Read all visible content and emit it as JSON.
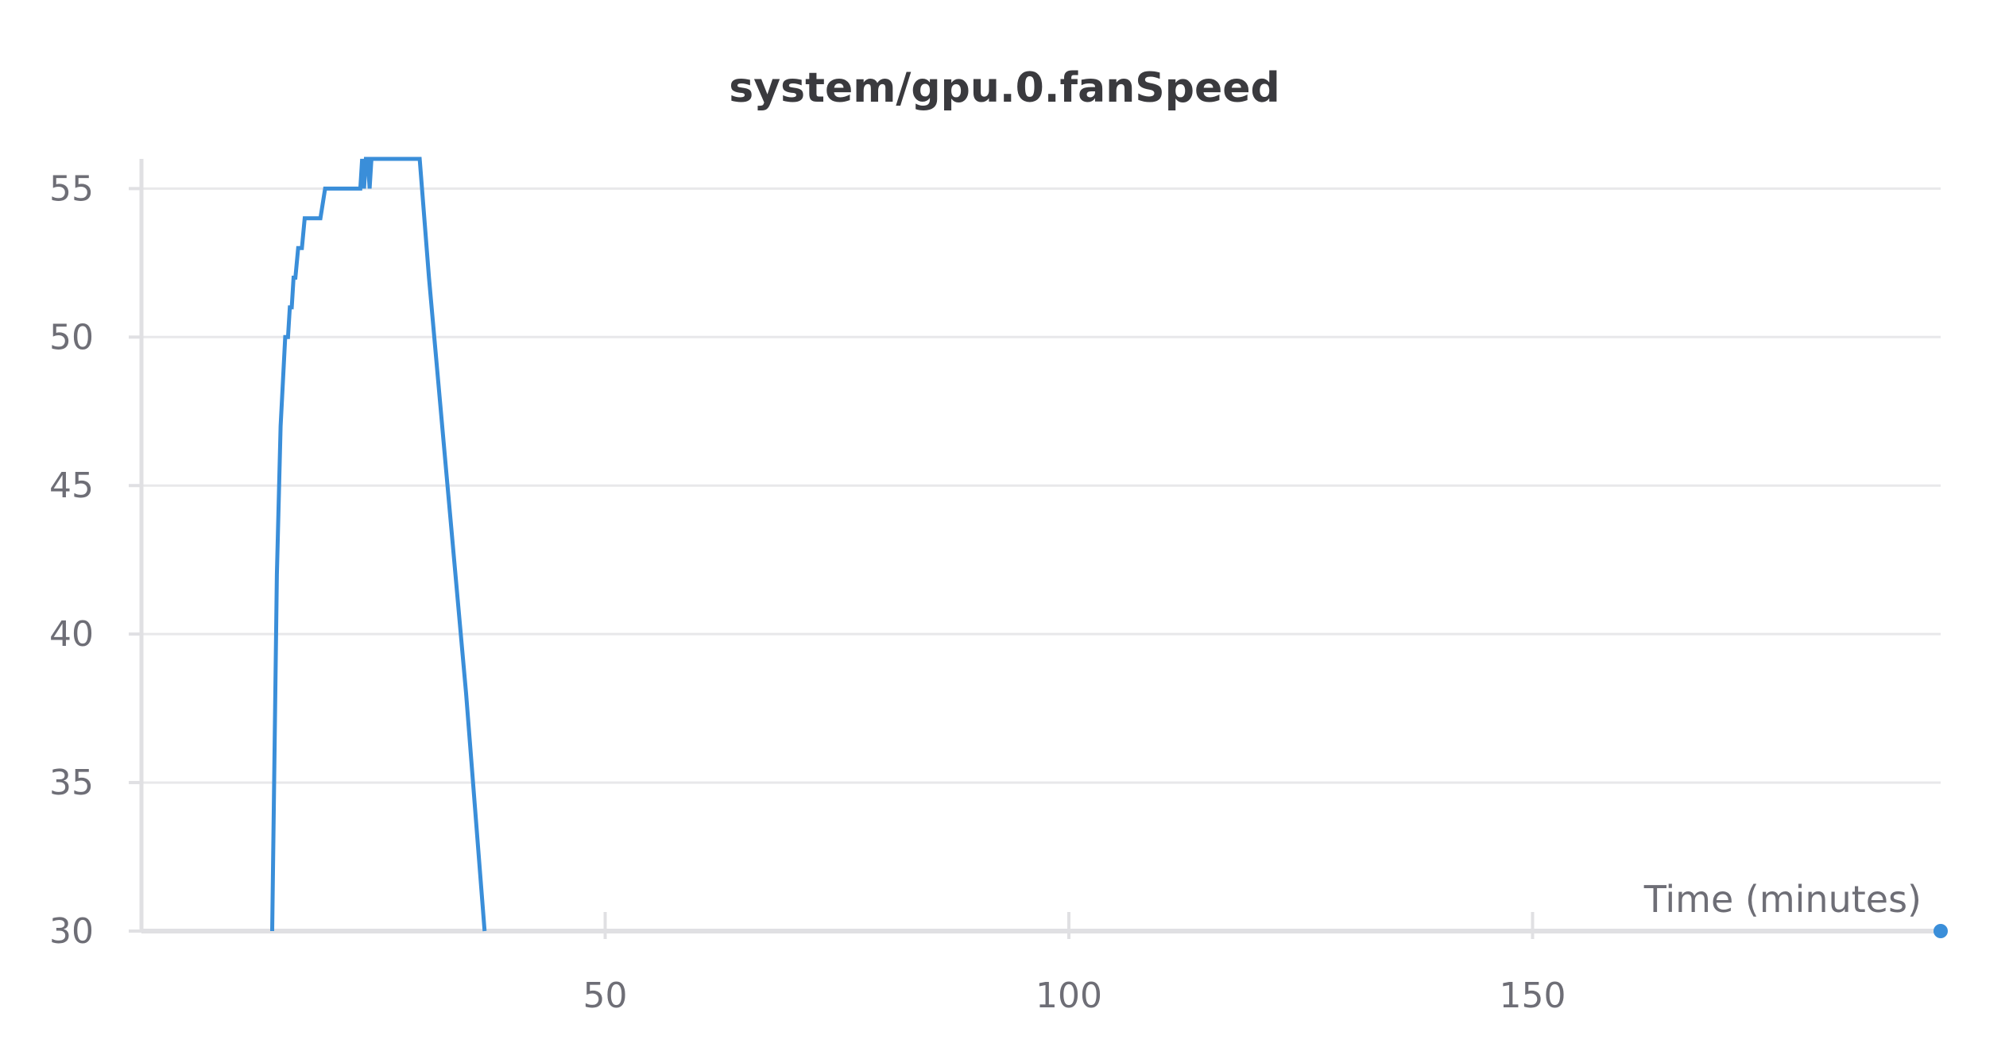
{
  "chart_data": {
    "type": "line",
    "title": "system/gpu.0.fanSpeed",
    "xlabel": "Time (minutes)",
    "ylabel": "",
    "xlim": [
      0,
      194
    ],
    "ylim": [
      30,
      56
    ],
    "xticks": [
      50,
      100,
      150
    ],
    "yticks": [
      30,
      35,
      40,
      45,
      50,
      55
    ],
    "grid": true,
    "colors": {
      "line": "#3a8ed9",
      "grid": "#e8e8ea",
      "axis": "#e0e0e3"
    },
    "series": [
      {
        "x": [
          14.1,
          14.6,
          15.0,
          15.5,
          15.8,
          16.0,
          16.2,
          16.4,
          16.6,
          16.9,
          17.1,
          17.3,
          17.6,
          17.9,
          18.4,
          19.3,
          19.8,
          21.4,
          21.6,
          22.6,
          23.1,
          23.6,
          23.8,
          24.0,
          24.2,
          24.4,
          24.6,
          24.8,
          25.2,
          26.0,
          30.0,
          31.0,
          33.0,
          35.0,
          37.0
        ],
        "y": [
          30,
          42,
          47,
          50,
          50,
          51,
          51,
          52,
          52,
          53,
          53,
          53,
          54,
          54,
          54,
          54,
          55,
          55,
          55,
          55,
          55,
          55,
          56,
          55,
          56,
          56,
          55,
          56,
          56,
          56,
          56,
          52,
          45,
          38,
          30
        ]
      }
    ],
    "markers": [
      {
        "x": 194,
        "y": 30
      }
    ]
  }
}
